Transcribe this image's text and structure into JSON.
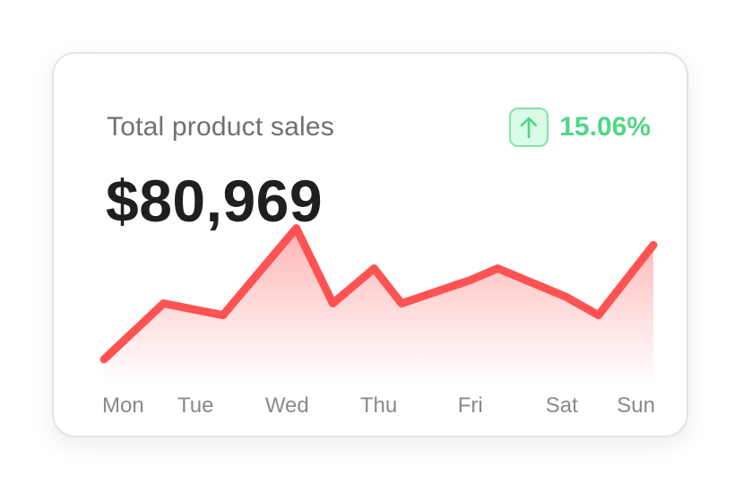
{
  "card": {
    "title": "Total product sales",
    "total": "$80,969",
    "trend": {
      "icon": "arrow-up-icon",
      "value": "15.06%",
      "color": "#4fd685",
      "background": "#dcfbe7"
    }
  },
  "chart_data": {
    "type": "area",
    "title": "",
    "xlabel": "",
    "ylabel": "",
    "categories": [
      "Mon",
      "Tue",
      "Wed",
      "Thu",
      "Fri",
      "Sat",
      "Sun"
    ],
    "x": [
      0,
      0.65,
      1.3,
      2.1,
      2.5,
      2.95,
      3.25,
      4,
      4.3,
      5.05,
      5.4,
      6
    ],
    "y": [
      2,
      6.3,
      5.4,
      12.1,
      6.3,
      9,
      6.3,
      8.1,
      9,
      6.8,
      5.4,
      10.8
    ],
    "ylim": [
      0,
      14
    ],
    "grid": false,
    "line_color": "#ff5252",
    "fill_color": "#ffb3b3"
  }
}
